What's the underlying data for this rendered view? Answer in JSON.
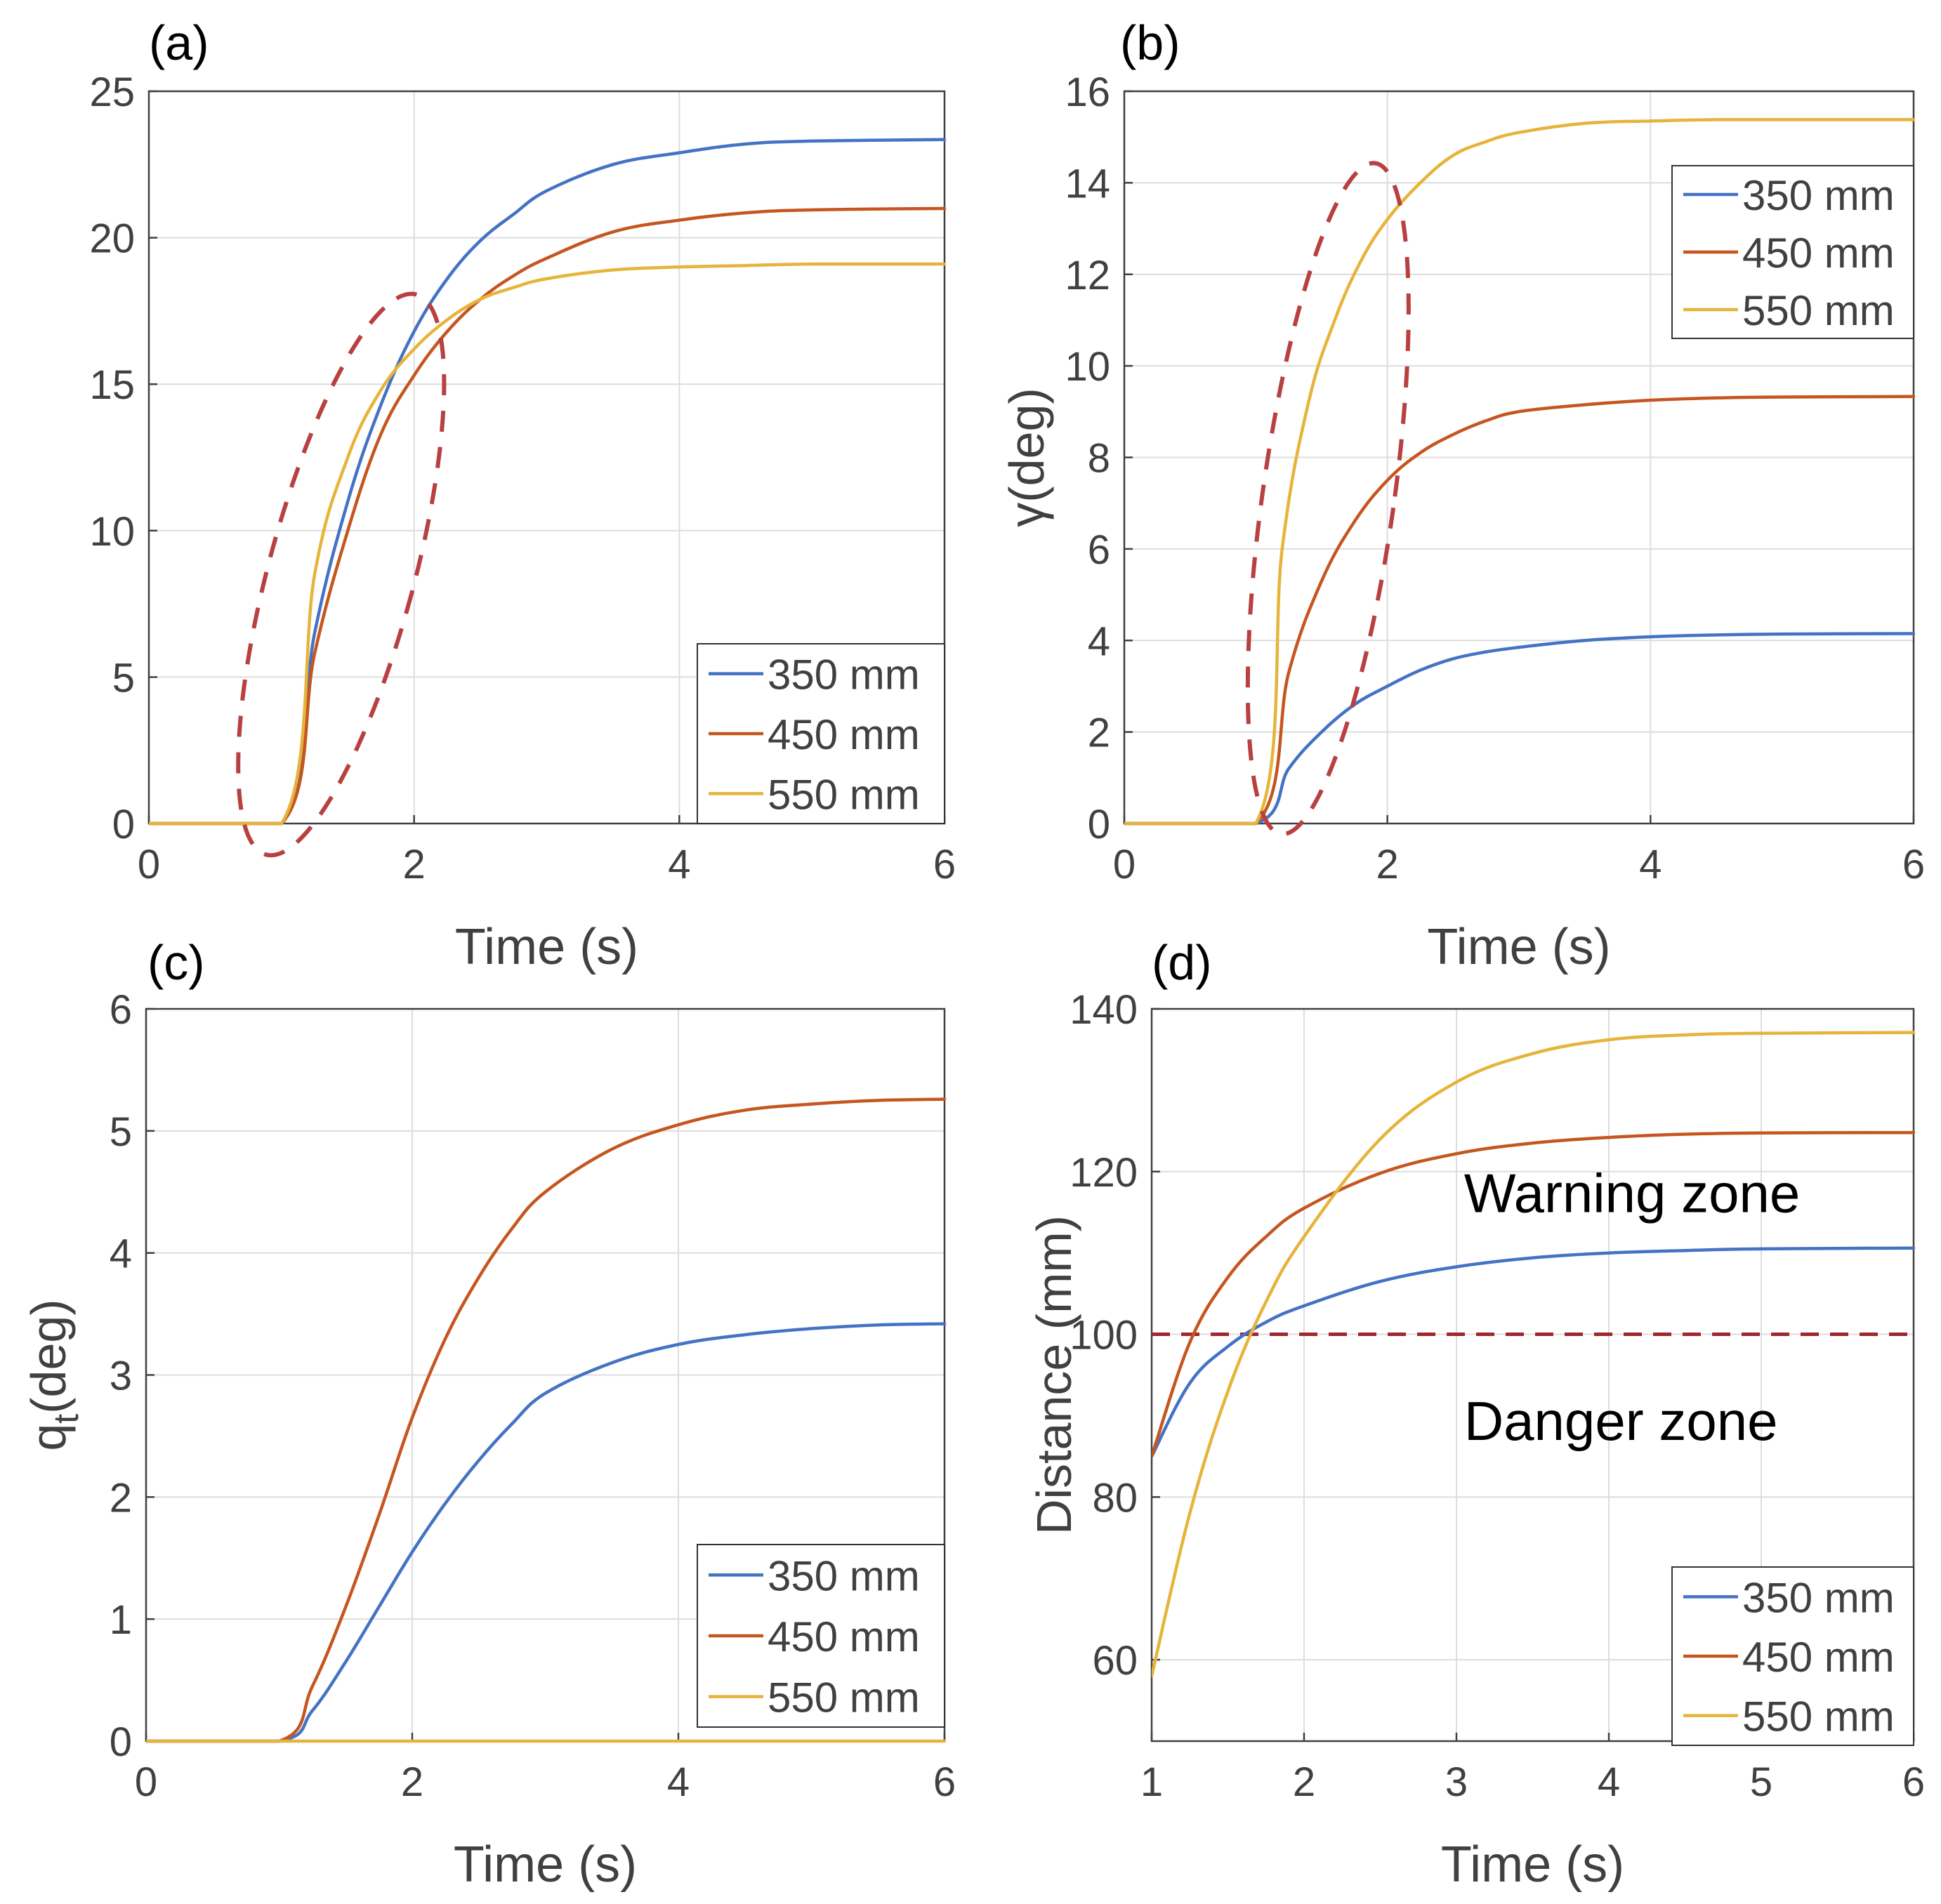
{
  "colors": {
    "s350": "#4472C4",
    "s450": "#C5561F",
    "s550": "#E6B43A",
    "ellipse": "#B84040",
    "threshold": "#A02830",
    "axis": "#404040",
    "grid": "#DDDDDD"
  },
  "chart_data": [
    {
      "type": "line",
      "panel_label": "(a)",
      "title": "",
      "xlabel": "Time (s)",
      "ylabel": "",
      "xlim": [
        0,
        6
      ],
      "ylim": [
        0,
        25
      ],
      "xticks": [
        0,
        2,
        4,
        6
      ],
      "yticks": [
        0,
        5,
        10,
        15,
        20,
        25
      ],
      "grid": true,
      "legend_position": "bottom-right",
      "series": [
        {
          "name": "350 mm",
          "x": [
            0,
            1,
            1.25,
            1.5,
            1.75,
            2,
            2.25,
            2.5,
            2.75,
            3,
            3.5,
            4,
            4.5,
            5,
            6
          ],
          "y": [
            0,
            0,
            6.5,
            11,
            14.3,
            16.8,
            18.6,
            19.9,
            20.8,
            21.6,
            22.5,
            22.9,
            23.2,
            23.3,
            23.35
          ]
        },
        {
          "name": "450 mm",
          "x": [
            0,
            1,
            1.25,
            1.5,
            1.75,
            2,
            2.25,
            2.5,
            2.75,
            3,
            3.5,
            4,
            4.5,
            5,
            6
          ],
          "y": [
            0,
            0,
            5.8,
            10,
            13.3,
            15.3,
            16.8,
            17.9,
            18.7,
            19.3,
            20.2,
            20.6,
            20.85,
            20.95,
            21.0
          ]
        },
        {
          "name": "550 mm",
          "x": [
            0,
            1,
            1.25,
            1.5,
            1.75,
            2,
            2.25,
            2.5,
            2.75,
            3,
            3.5,
            4,
            4.5,
            5,
            6
          ],
          "y": [
            0,
            0,
            8.5,
            12.5,
            14.8,
            16.2,
            17.2,
            17.9,
            18.3,
            18.6,
            18.9,
            19.0,
            19.05,
            19.1,
            19.1
          ]
        }
      ],
      "annotations": [
        {
          "type": "dashed-ellipse",
          "cx": 1.45,
          "cy": 8.5,
          "rx": 0.55,
          "ry": 9.9,
          "angle_deg": 15
        }
      ]
    },
    {
      "type": "line",
      "panel_label": "(b)",
      "title": "",
      "xlabel": "Time (s)",
      "ylabel": "γ(deg)",
      "xlim": [
        0,
        6
      ],
      "ylim": [
        0,
        16
      ],
      "xticks": [
        0,
        2,
        4,
        6
      ],
      "yticks": [
        0,
        2,
        4,
        6,
        8,
        10,
        12,
        14,
        16
      ],
      "grid": true,
      "legend_position": "top-right",
      "series": [
        {
          "name": "350 mm",
          "x": [
            0,
            1,
            1.25,
            1.5,
            1.75,
            2,
            2.25,
            2.5,
            2.75,
            3,
            3.5,
            4,
            4.5,
            5,
            6
          ],
          "y": [
            0,
            0,
            1.2,
            2.0,
            2.6,
            3.0,
            3.35,
            3.6,
            3.75,
            3.85,
            4.0,
            4.08,
            4.12,
            4.14,
            4.15
          ]
        },
        {
          "name": "450 mm",
          "x": [
            0,
            1,
            1.25,
            1.5,
            1.75,
            2,
            2.25,
            2.5,
            2.75,
            3,
            3.5,
            4,
            4.5,
            5,
            6
          ],
          "y": [
            0,
            0,
            3.3,
            5.3,
            6.6,
            7.5,
            8.1,
            8.5,
            8.8,
            9.0,
            9.15,
            9.25,
            9.3,
            9.32,
            9.33
          ]
        },
        {
          "name": "550 mm",
          "x": [
            0,
            1,
            1.2,
            1.4,
            1.6,
            1.8,
            2,
            2.25,
            2.5,
            2.75,
            3,
            3.5,
            4,
            4.5,
            5,
            6
          ],
          "y": [
            0,
            0,
            6.0,
            9.2,
            11.0,
            12.3,
            13.2,
            14.0,
            14.6,
            14.9,
            15.1,
            15.3,
            15.35,
            15.38,
            15.38,
            15.38
          ]
        }
      ],
      "annotations": [
        {
          "type": "dashed-ellipse",
          "cx": 1.55,
          "cy": 7.1,
          "rx": 0.5,
          "ry": 7.4,
          "angle_deg": 8
        }
      ]
    },
    {
      "type": "line",
      "panel_label": "(c)",
      "title": "",
      "xlabel": "Time (s)",
      "ylabel": "q_t(deg)",
      "ylabel_main": "q",
      "ylabel_sub": "t",
      "ylabel_tail": "(deg)",
      "xlim": [
        0,
        6
      ],
      "ylim": [
        0,
        6
      ],
      "xticks": [
        0,
        2,
        4,
        6
      ],
      "yticks": [
        0,
        1,
        2,
        3,
        4,
        5,
        6
      ],
      "grid": true,
      "legend_position": "bottom-right",
      "series": [
        {
          "name": "350 mm",
          "x": [
            0,
            1,
            1.25,
            1.5,
            1.75,
            2,
            2.25,
            2.5,
            2.75,
            3,
            3.5,
            4,
            4.5,
            5,
            5.5,
            6
          ],
          "y": [
            0,
            0,
            0.25,
            0.65,
            1.1,
            1.55,
            1.95,
            2.3,
            2.6,
            2.85,
            3.1,
            3.25,
            3.33,
            3.38,
            3.41,
            3.42
          ]
        },
        {
          "name": "450 mm",
          "x": [
            0,
            1,
            1.25,
            1.5,
            1.75,
            2,
            2.25,
            2.5,
            2.75,
            3,
            3.5,
            4,
            4.5,
            5,
            5.5,
            6
          ],
          "y": [
            0,
            0,
            0.45,
            1.1,
            1.85,
            2.65,
            3.3,
            3.8,
            4.2,
            4.5,
            4.85,
            5.05,
            5.17,
            5.22,
            5.25,
            5.26
          ]
        },
        {
          "name": "550 mm",
          "x": [
            0,
            6
          ],
          "y": [
            0,
            0
          ]
        }
      ]
    },
    {
      "type": "line",
      "panel_label": "(d)",
      "title": "",
      "xlabel": "Time (s)",
      "ylabel": "Distance (mm)",
      "xlim": [
        1,
        6
      ],
      "ylim": [
        50,
        140
      ],
      "xticks": [
        1,
        2,
        3,
        4,
        5,
        6
      ],
      "yticks": [
        60,
        80,
        100,
        120,
        140
      ],
      "grid": true,
      "legend_position": "bottom-right",
      "series": [
        {
          "name": "350 mm",
          "x": [
            1,
            1.25,
            1.5,
            1.75,
            2,
            2.5,
            3,
            3.5,
            4,
            4.5,
            5,
            6
          ],
          "y": [
            85,
            94,
            98.5,
            101.5,
            103.5,
            106.5,
            108.3,
            109.4,
            110.0,
            110.3,
            110.5,
            110.6
          ]
        },
        {
          "name": "450 mm",
          "x": [
            1,
            1.25,
            1.5,
            1.75,
            2,
            2.5,
            3,
            3.5,
            4,
            4.5,
            5,
            6
          ],
          "y": [
            85,
            99,
            107,
            112,
            115.5,
            119.8,
            122.2,
            123.5,
            124.2,
            124.6,
            124.75,
            124.8
          ]
        },
        {
          "name": "550 mm",
          "x": [
            1,
            1.25,
            1.5,
            1.75,
            2,
            2.5,
            3,
            3.5,
            4,
            4.5,
            5,
            6
          ],
          "y": [
            58,
            78,
            93,
            104,
            112,
            124,
            131,
            134.5,
            136.2,
            136.8,
            137.0,
            137.1
          ]
        }
      ],
      "annotations": [
        {
          "type": "hline",
          "y": 100,
          "style": "dashed"
        },
        {
          "type": "text",
          "text": "Warning zone",
          "x": 3.05,
          "y": 115
        },
        {
          "type": "text",
          "text": "Danger zone",
          "x": 3.05,
          "y": 87
        }
      ]
    }
  ]
}
